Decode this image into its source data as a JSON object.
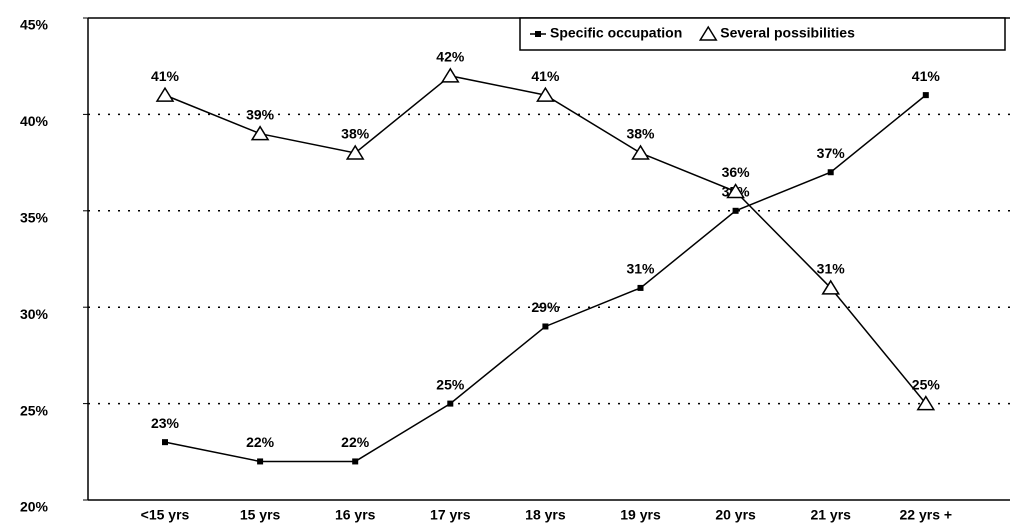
{
  "chart_data": {
    "type": "line",
    "categories": [
      "<15 yrs",
      "15 yrs",
      "16 yrs",
      "17 yrs",
      "18 yrs",
      "19 yrs",
      "20 yrs",
      "21 yrs",
      "22 yrs +"
    ],
    "series": [
      {
        "name": "Specific occupation",
        "color": "#000000",
        "marker": "square",
        "values": [
          23,
          22,
          22,
          25,
          29,
          31,
          35,
          37,
          41
        ],
        "value_labels": [
          "23%",
          "22%",
          "22%",
          "25%",
          "29%",
          "31%",
          "35%",
          "37%",
          "41%"
        ]
      },
      {
        "name": "Several possibilities",
        "color": "#000000",
        "marker": "triangle",
        "values": [
          41,
          39,
          38,
          42,
          41,
          38,
          36,
          31,
          25
        ],
        "value_labels": [
          "41%",
          "39%",
          "38%",
          "42%",
          "41%",
          "38%",
          "36%",
          "31%",
          "25%"
        ]
      }
    ],
    "ylim": [
      20,
      45
    ],
    "yticks": [
      {
        "value": 20,
        "label": "20%"
      },
      {
        "value": 25,
        "label": "25%"
      },
      {
        "value": 30,
        "label": "30%"
      },
      {
        "value": 35,
        "label": "35%"
      },
      {
        "value": 40,
        "label": "40%"
      },
      {
        "value": 45,
        "label": "45%"
      }
    ],
    "grid": true,
    "legend": "upper right"
  }
}
